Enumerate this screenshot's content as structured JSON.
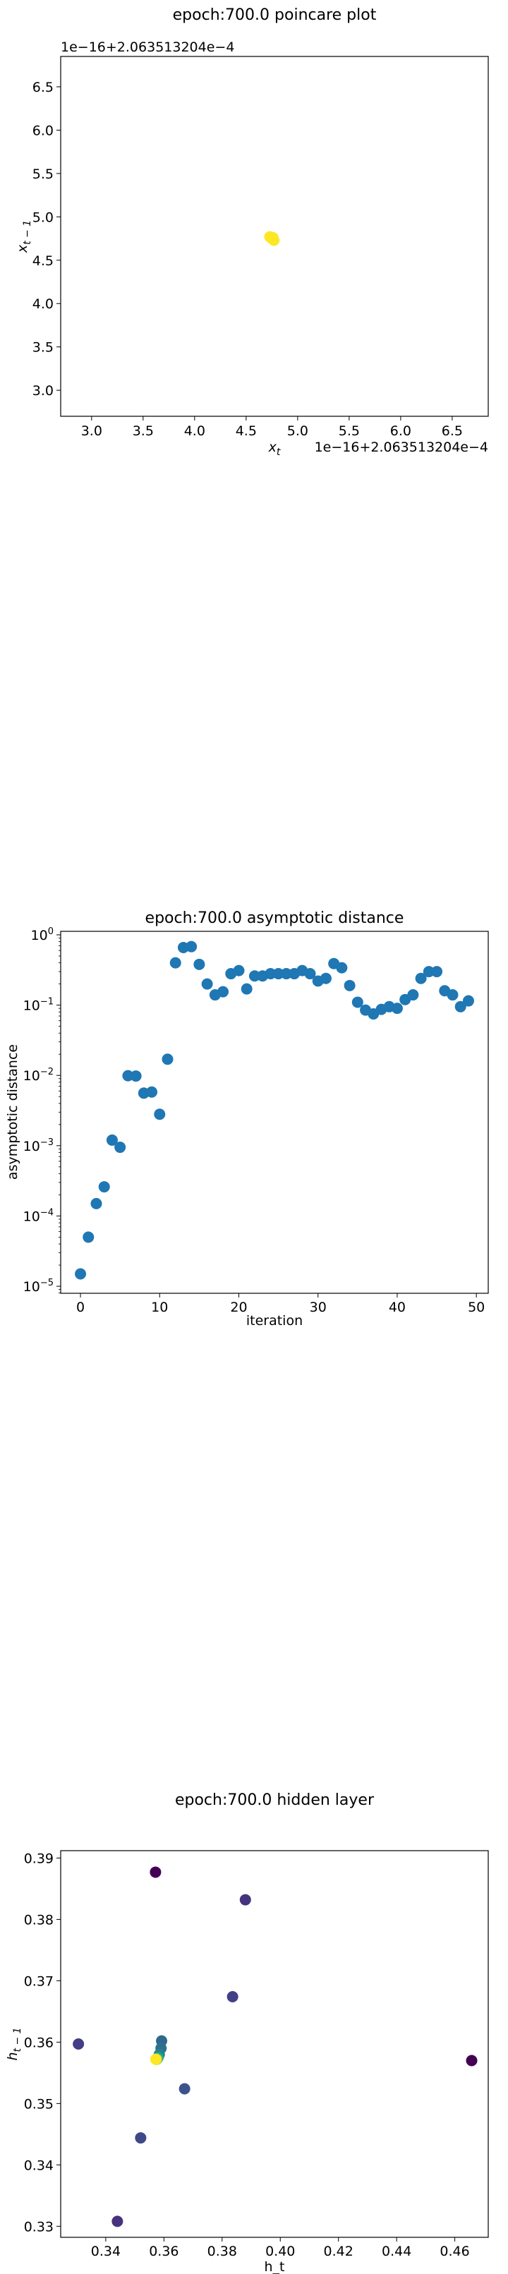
{
  "chart_data": [
    {
      "type": "scatter",
      "title": "epoch:700.0 poincare plot",
      "xlabel_base": "x",
      "xlabel_sub": "t",
      "ylabel_base": "x",
      "ylabel_sub": "t − 1",
      "offset_label_y": "1e−16+2.063513204e−4",
      "offset_label_x": "1e−16+2.063513204e−4",
      "xlim": [
        2.7,
        6.85
      ],
      "ylim": [
        2.7,
        6.85
      ],
      "xticks": [
        "3.0",
        "3.5",
        "4.0",
        "4.5",
        "5.0",
        "5.5",
        "6.0",
        "6.5"
      ],
      "yticks": [
        "3.0",
        "3.5",
        "4.0",
        "4.5",
        "5.0",
        "5.5",
        "6.0",
        "6.5"
      ],
      "points": [
        {
          "x": 4.75,
          "y": 4.75,
          "color": "#fde725"
        },
        {
          "x": 4.77,
          "y": 4.73,
          "color": "#fde725"
        },
        {
          "x": 4.73,
          "y": 4.77,
          "color": "#fde725"
        },
        {
          "x": 4.76,
          "y": 4.76,
          "color": "#fde725"
        }
      ]
    },
    {
      "type": "scatter",
      "title": "epoch:700.0 asymptotic distance",
      "xlabel": "iteration",
      "ylabel": "asymptotic distance",
      "yscale": "log",
      "xlim": [
        -2.5,
        51.5
      ],
      "ylim_log10": [
        -5.1,
        0.05
      ],
      "xticks": [
        0,
        10,
        20,
        30,
        40,
        50
      ],
      "yticks": [
        {
          "exp": -5,
          "label": "10",
          "sup": "−5"
        },
        {
          "exp": -4,
          "label": "10",
          "sup": "−4"
        },
        {
          "exp": -3,
          "label": "10",
          "sup": "−3"
        },
        {
          "exp": -2,
          "label": "10",
          "sup": "−2"
        },
        {
          "exp": -1,
          "label": "10",
          "sup": "−1"
        },
        {
          "exp": 0,
          "label": "10",
          "sup": "0"
        }
      ],
      "color": "#1f77b4",
      "x": [
        0,
        1,
        2,
        3,
        4,
        5,
        6,
        7,
        8,
        9,
        10,
        11,
        12,
        13,
        14,
        15,
        16,
        17,
        18,
        19,
        20,
        21,
        22,
        23,
        24,
        25,
        26,
        27,
        28,
        29,
        30,
        31,
        32,
        33,
        34,
        35,
        36,
        37,
        38,
        39,
        40,
        41,
        42,
        43,
        44,
        45,
        46,
        47,
        48,
        49
      ],
      "y": [
        1.5e-05,
        5e-05,
        0.00015,
        0.00026,
        0.0012,
        0.00095,
        0.0099,
        0.0098,
        0.0056,
        0.0058,
        0.0028,
        0.017,
        0.4,
        0.66,
        0.68,
        0.38,
        0.2,
        0.14,
        0.155,
        0.28,
        0.31,
        0.17,
        0.26,
        0.26,
        0.28,
        0.28,
        0.28,
        0.28,
        0.31,
        0.28,
        0.22,
        0.24,
        0.39,
        0.34,
        0.19,
        0.11,
        0.085,
        0.075,
        0.087,
        0.095,
        0.09,
        0.12,
        0.14,
        0.24,
        0.3,
        0.3,
        0.16,
        0.14,
        0.095,
        0.115
      ]
    },
    {
      "type": "scatter",
      "title": "epoch:700.0 hidden layer",
      "xlabel": "h_t",
      "ylabel_base": "h",
      "ylabel_sub": "t − 1",
      "xlim": [
        0.3245,
        0.4715
      ],
      "ylim": [
        0.3282,
        0.3912
      ],
      "xticks": [
        "0.34",
        "0.36",
        "0.38",
        "0.40",
        "0.42",
        "0.44",
        "0.46"
      ],
      "xtick_values": [
        0.34,
        0.36,
        0.38,
        0.4,
        0.42,
        0.44,
        0.46
      ],
      "yticks": [
        "0.33",
        "0.34",
        "0.35",
        "0.36",
        "0.37",
        "0.38",
        "0.39"
      ],
      "ytick_values": [
        0.33,
        0.34,
        0.35,
        0.36,
        0.37,
        0.38,
        0.39
      ],
      "points": [
        {
          "x": 0.3571,
          "y": 0.3877,
          "color": "#440154"
        },
        {
          "x": 0.4658,
          "y": 0.357,
          "color": "#440154"
        },
        {
          "x": 0.388,
          "y": 0.3832,
          "color": "#46337e"
        },
        {
          "x": 0.344,
          "y": 0.3308,
          "color": "#46327e"
        },
        {
          "x": 0.3306,
          "y": 0.3597,
          "color": "#433e85"
        },
        {
          "x": 0.3836,
          "y": 0.3674,
          "color": "#424086"
        },
        {
          "x": 0.352,
          "y": 0.3444,
          "color": "#3e4989"
        },
        {
          "x": 0.3671,
          "y": 0.3524,
          "color": "#3b528b"
        },
        {
          "x": 0.3592,
          "y": 0.3602,
          "color": "#31688e"
        },
        {
          "x": 0.359,
          "y": 0.359,
          "color": "#2c728e"
        },
        {
          "x": 0.3584,
          "y": 0.358,
          "color": "#26828e"
        },
        {
          "x": 0.358,
          "y": 0.3575,
          "color": "#1f9e89"
        },
        {
          "x": 0.3577,
          "y": 0.3573,
          "color": "#35b779"
        },
        {
          "x": 0.3575,
          "y": 0.3572,
          "color": "#6ece58"
        },
        {
          "x": 0.3573,
          "y": 0.3572,
          "color": "#b5de2b"
        },
        {
          "x": 0.3572,
          "y": 0.3572,
          "color": "#fde725"
        }
      ]
    }
  ]
}
